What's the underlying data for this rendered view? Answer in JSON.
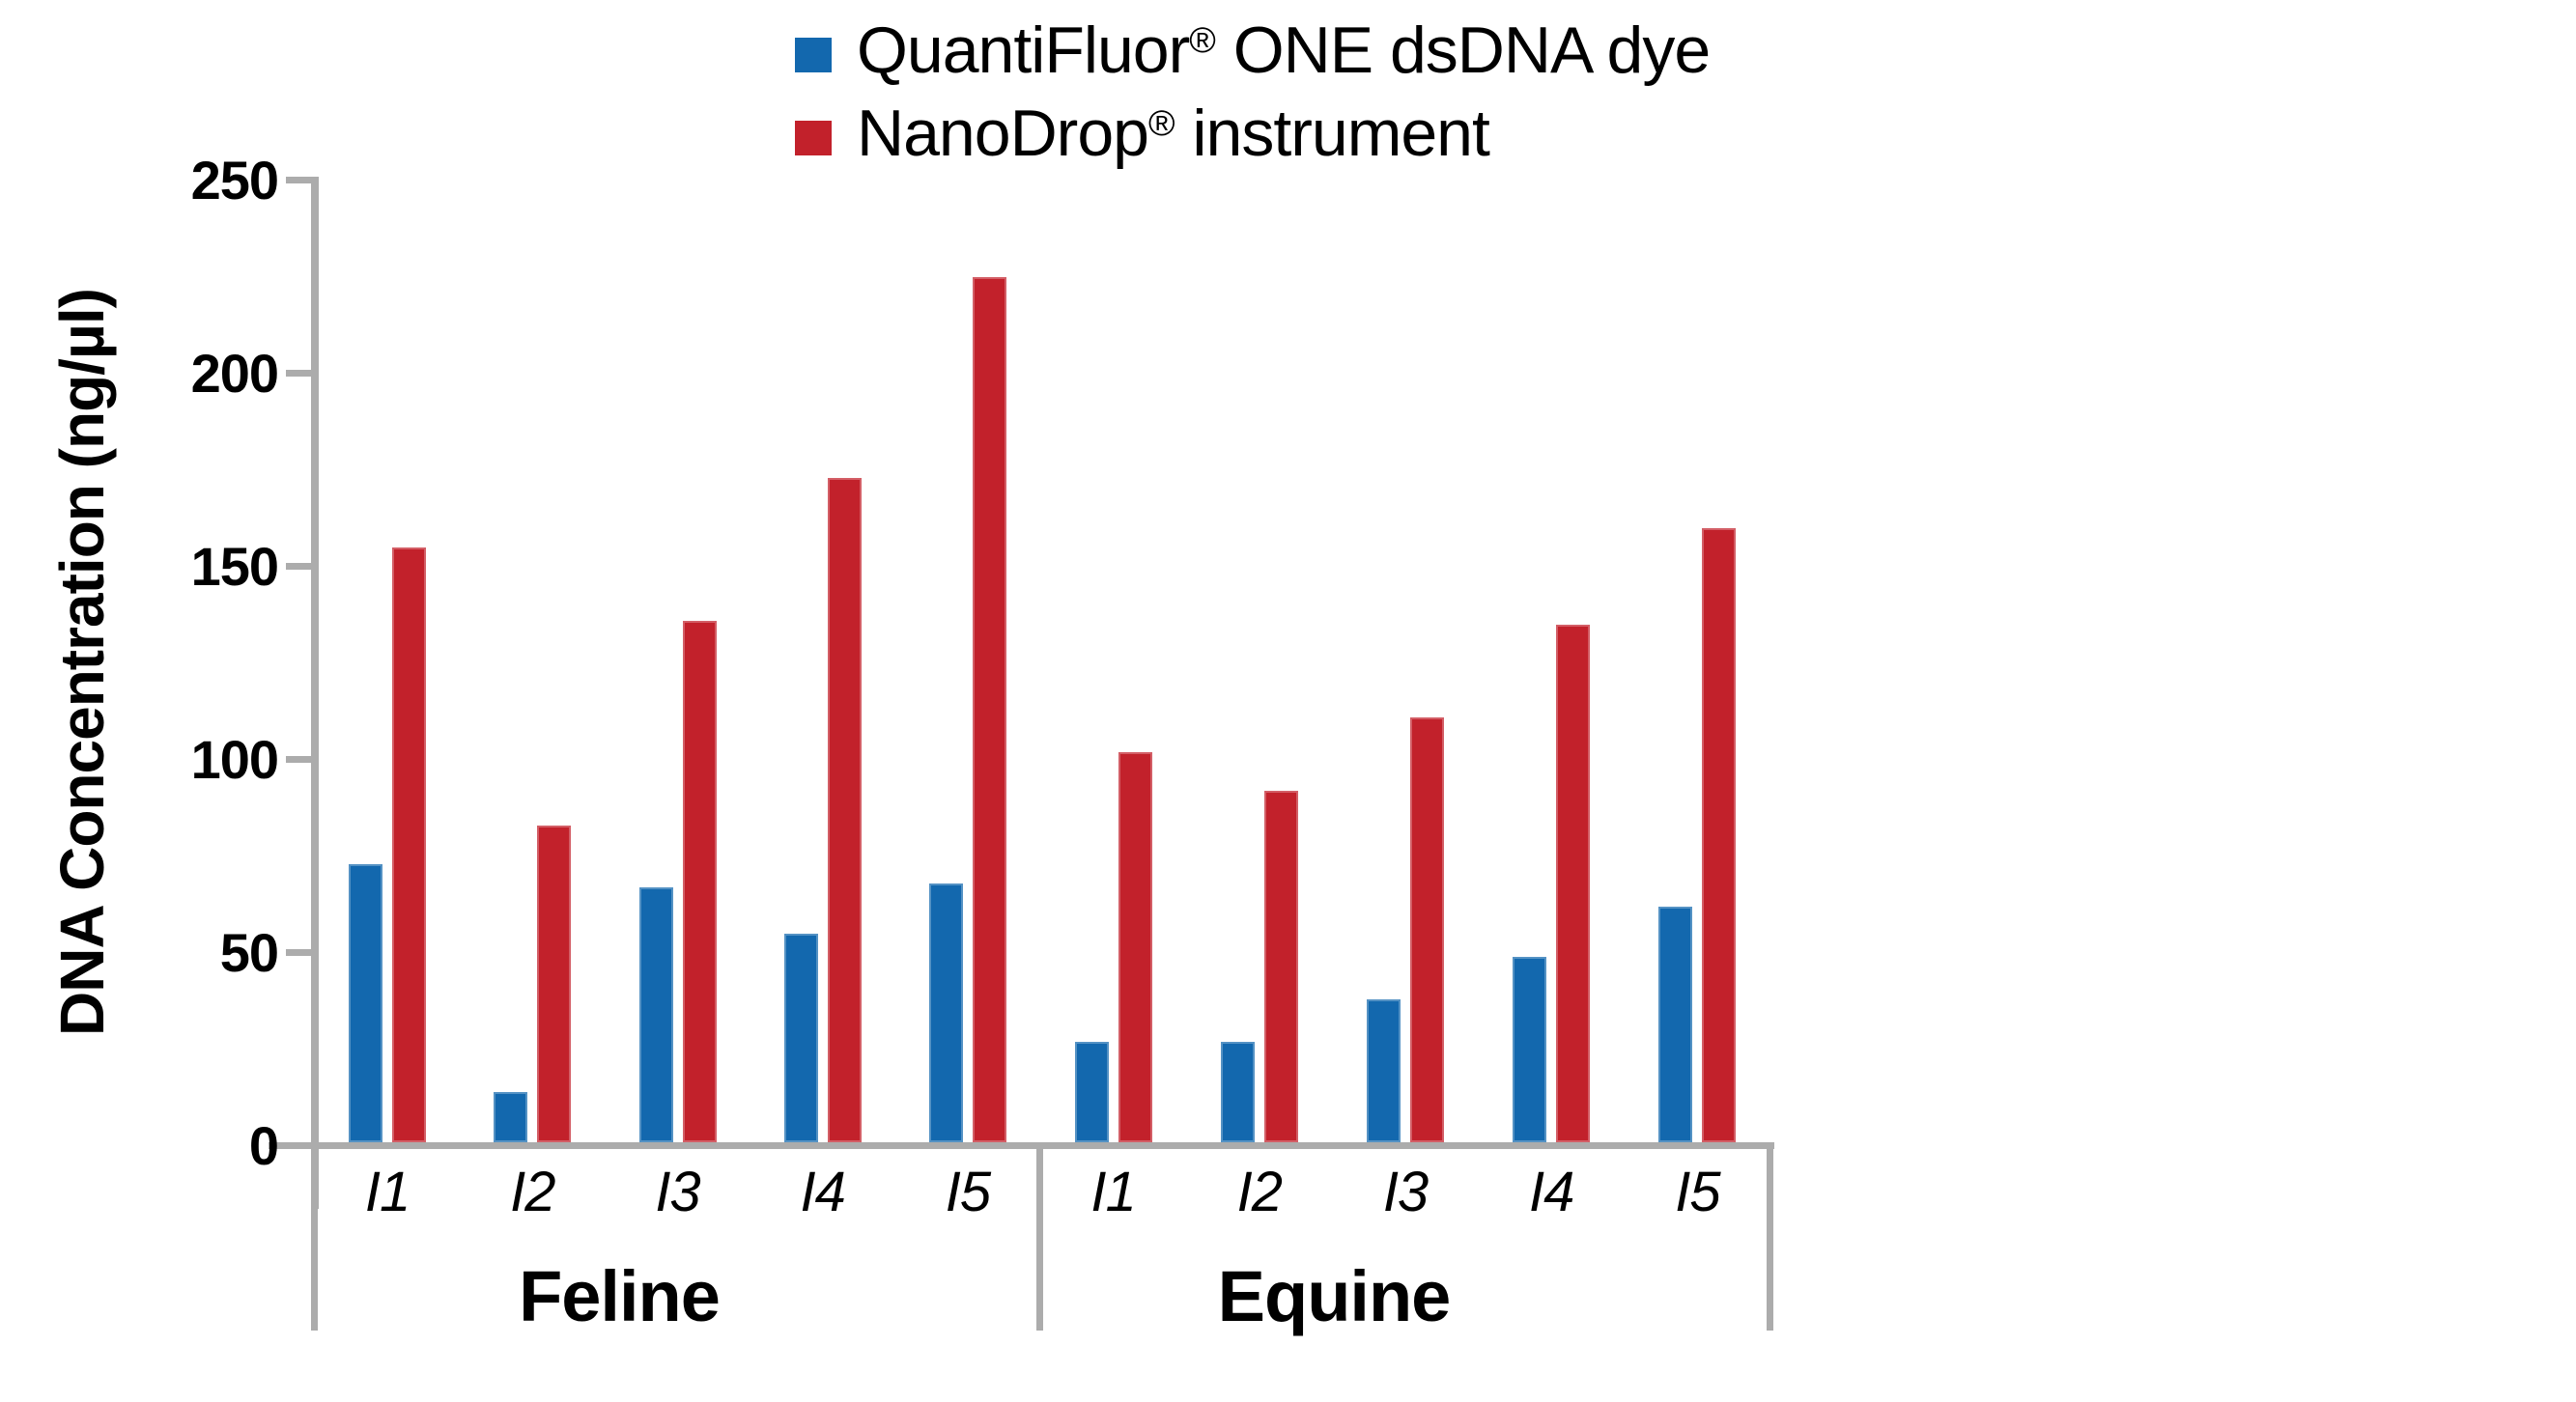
{
  "chart_data": {
    "type": "bar",
    "title": "",
    "ylabel": "DNA Concentration (ng/µl)",
    "xlabel": "",
    "ylim": [
      0,
      250
    ],
    "yticks": [
      0,
      50,
      100,
      150,
      200,
      250
    ],
    "grid": false,
    "legend_position": "top-center",
    "groups": [
      {
        "label": "Feline",
        "categories": [
          "I1",
          "I2",
          "I3",
          "I4",
          "I5"
        ]
      },
      {
        "label": "Equine",
        "categories": [
          "I1",
          "I2",
          "I3",
          "I4",
          "I5"
        ]
      }
    ],
    "series": [
      {
        "name": "QuantiFluor® ONE dsDNA dye",
        "color": "#1368AE",
        "values_by_group": [
          [
            72,
            13,
            66,
            54,
            67
          ],
          [
            26,
            26,
            37,
            48,
            61
          ]
        ]
      },
      {
        "name": "NanoDrop® instrument",
        "color": "#C2212B",
        "values_by_group": [
          [
            154,
            82,
            135,
            172,
            224
          ],
          [
            101,
            91,
            110,
            134,
            159
          ]
        ]
      }
    ]
  },
  "legend": {
    "items": [
      {
        "name": "QuantiFluor",
        "reg": "®",
        "rest": " ONE dsDNA dye",
        "color": "#1368AE"
      },
      {
        "name": "NanoDrop",
        "reg": "®",
        "rest": " instrument",
        "color": "#C2212B"
      }
    ]
  },
  "colors": {
    "axis": "#ACACAC",
    "text": "#000000",
    "background": "#FFFFFF"
  }
}
